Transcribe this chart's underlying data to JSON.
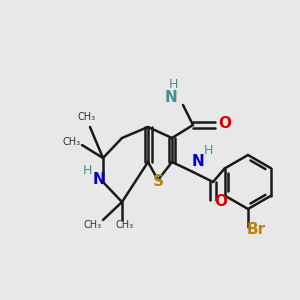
{
  "background_color": "#e8e8e8",
  "figsize": [
    3.0,
    3.0
  ],
  "dpi": 100,
  "xlim": [
    0,
    300
  ],
  "ylim": [
    0,
    300
  ],
  "colors": {
    "bond": "#1a1a1a",
    "S": "#b8860b",
    "N_blue": "#0000cc",
    "N_teal": "#4a9090",
    "O": "#dd0000",
    "Br": "#b8860b",
    "H_teal": "#4a9090"
  }
}
